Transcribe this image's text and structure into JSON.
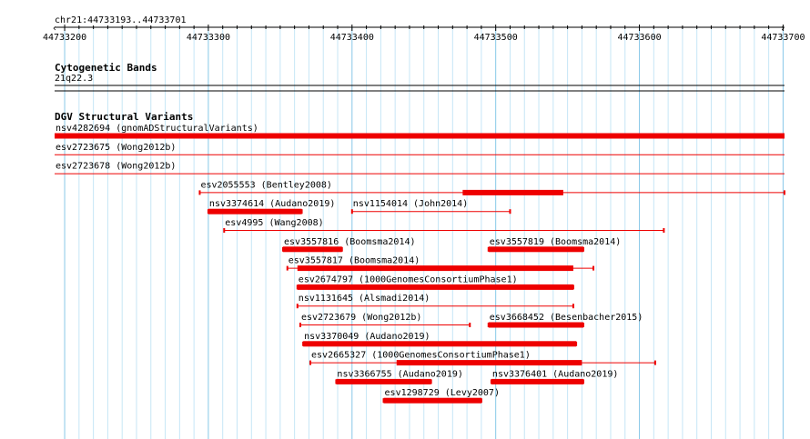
{
  "region_label": "chr21:44733193..44733701",
  "ruler": {
    "start": 44733193,
    "end": 44733701,
    "ticks": [
      44733200,
      44733300,
      44733400,
      44733500,
      44733600,
      44733700
    ],
    "tick_labels": [
      "44733200",
      "44733300",
      "44733400",
      "44733500",
      "44733600",
      "44733700"
    ]
  },
  "tracks": [
    {
      "title": "Cytogenetic Bands",
      "kind": "band",
      "items": [
        {
          "label": "21q22.3",
          "start": 44733193,
          "end": 44733701
        }
      ]
    },
    {
      "title": "DGV Structural Variants",
      "kind": "features",
      "items": [
        {
          "label": "nsv4282694 (gnomADStructuralVariants)",
          "row": 0,
          "start": 44733193,
          "end": 44733701,
          "thick_start": 44733193,
          "thick_end": 44733701
        },
        {
          "label": "esv2723675 (Wong2012b)",
          "row": 1,
          "start": 44733193,
          "end": 44733701,
          "thick_start": null,
          "thick_end": null
        },
        {
          "label": "esv2723678 (Wong2012b)",
          "row": 2,
          "start": 44733193,
          "end": 44733701,
          "thick_start": null,
          "thick_end": null
        },
        {
          "label": "esv2055553 (Bentley2008)",
          "row": 3,
          "start": 44733294,
          "end": 44733701,
          "thick_start": 44733477,
          "thick_end": 44733547
        },
        {
          "label": "nsv3374614 (Audano2019)",
          "row": 4,
          "start": 44733300,
          "end": 44733365,
          "thick_start": 44733300,
          "thick_end": 44733365
        },
        {
          "label": "nsv1154014 (John2014)",
          "row": 4,
          "start": 44733400,
          "end": 44733510,
          "thick_start": null,
          "thick_end": null
        },
        {
          "label": "esv4995 (Wang2008)",
          "row": 5,
          "start": 44733311,
          "end": 44733617,
          "thick_start": null,
          "thick_end": null
        },
        {
          "label": "esv3557816 (Boomsma2014)",
          "row": 6,
          "start": 44733352,
          "end": 44733393,
          "thick_start": 44733352,
          "thick_end": 44733393
        },
        {
          "label": "esv3557819 (Boomsma2014)",
          "row": 6,
          "start": 44733495,
          "end": 44733561,
          "thick_start": 44733495,
          "thick_end": 44733561
        },
        {
          "label": "esv3557817 (Boomsma2014)",
          "row": 7,
          "start": 44733355,
          "end": 44733568,
          "thick_start": 44733362,
          "thick_end": 44733554
        },
        {
          "label": "esv2674797 (1000GenomesConsortiumPhase1)",
          "row": 8,
          "start": 44733362,
          "end": 44733554,
          "thick_start": 44733362,
          "thick_end": 44733554
        },
        {
          "label": "nsv1131645 (Alsmadi2014)",
          "row": 9,
          "start": 44733362,
          "end": 44733554,
          "thick_start": null,
          "thick_end": null
        },
        {
          "label": "esv2723679 (Wong2012b)",
          "row": 10,
          "start": 44733364,
          "end": 44733482,
          "thick_start": null,
          "thick_end": null
        },
        {
          "label": "esv3668452 (Besenbacher2015)",
          "row": 10,
          "start": 44733495,
          "end": 44733561,
          "thick_start": 44733495,
          "thick_end": 44733561
        },
        {
          "label": "nsv3370049 (Audano2019)",
          "row": 11,
          "start": 44733366,
          "end": 44733556,
          "thick_start": 44733366,
          "thick_end": 44733556
        },
        {
          "label": "esv2665327 (1000GenomesConsortiumPhase1)",
          "row": 12,
          "start": 44733371,
          "end": 44733611,
          "thick_start": 44733431,
          "thick_end": 44733560
        },
        {
          "label": "nsv3366755 (Audano2019)",
          "row": 13,
          "start": 44733389,
          "end": 44733455,
          "thick_start": 44733389,
          "thick_end": 44733455
        },
        {
          "label": "nsv3376401 (Audano2019)",
          "row": 13,
          "start": 44733497,
          "end": 44733561,
          "thick_start": 44733497,
          "thick_end": 44733561
        },
        {
          "label": "esv1298729 (Levy2007)",
          "row": 14,
          "start": 44733422,
          "end": 44733490,
          "thick_start": 44733422,
          "thick_end": 44733490
        }
      ]
    }
  ],
  "colors": {
    "feature": "#ee0000",
    "grid_major": "#88c8e8",
    "grid_minor": "#c6e6f6",
    "axis": "#000000",
    "separator": "#cc0000"
  }
}
